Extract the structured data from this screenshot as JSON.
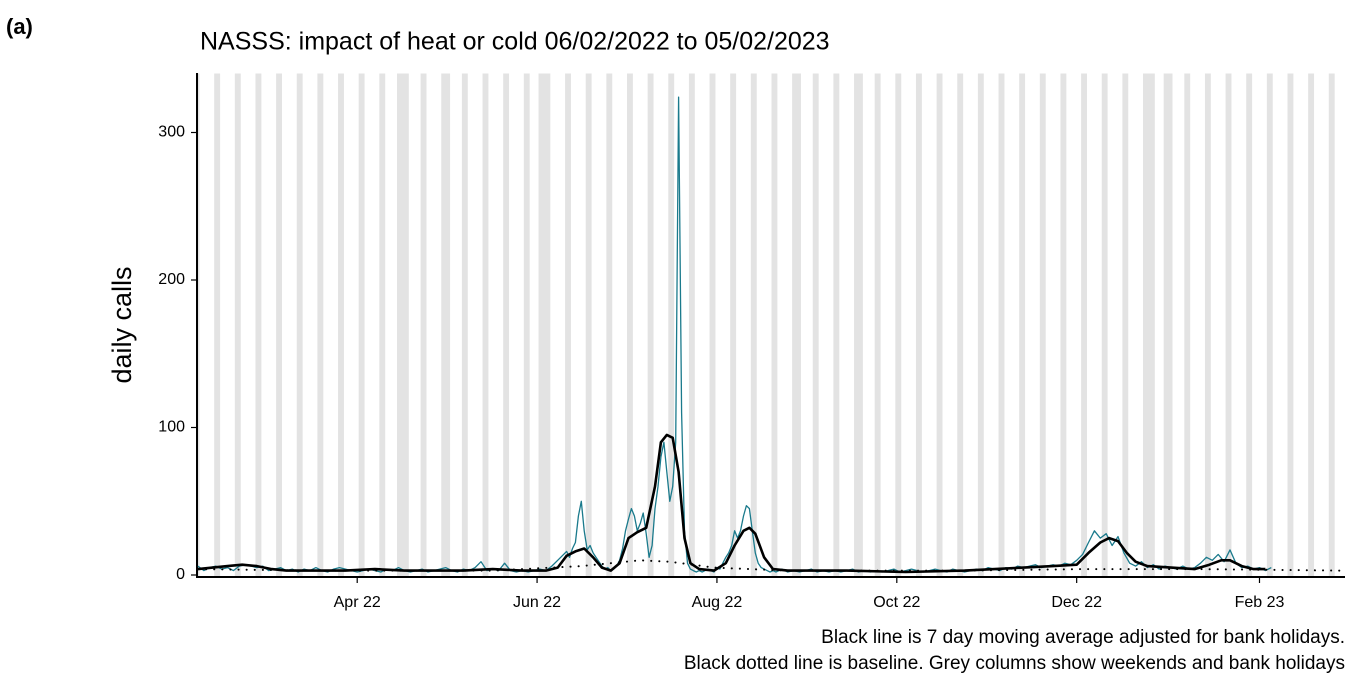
{
  "panel_label": "(a)",
  "chart_data": {
    "type": "line",
    "title": "NASSS: impact of heat or cold 06/02/2022 to 05/02/2023",
    "y_label": "daily calls",
    "notes": [
      "Black line is 7 day moving average adjusted for bank holidays.",
      "Black dotted line is baseline. Grey columns show weekends and bank holidays"
    ],
    "xlim": [
      -0.5,
      389
    ],
    "ylim": [
      0,
      340
    ],
    "yticks": [
      0,
      100,
      200,
      300
    ],
    "xticks": [
      {
        "value": 54,
        "label": "Apr 22"
      },
      {
        "value": 115,
        "label": "Jun 22"
      },
      {
        "value": 176,
        "label": "Aug 22"
      },
      {
        "value": 237,
        "label": "Oct 22"
      },
      {
        "value": 298,
        "label": "Dec 22"
      },
      {
        "value": 360,
        "label": "Feb 23"
      }
    ],
    "shade_color": "#e3e3e3",
    "shaded_days": [
      [
        0,
        0
      ],
      [
        6,
        7
      ],
      [
        13,
        14
      ],
      [
        20,
        21
      ],
      [
        27,
        28
      ],
      [
        34,
        35
      ],
      [
        41,
        42
      ],
      [
        48,
        49
      ],
      [
        55,
        56
      ],
      [
        62,
        63
      ],
      [
        68,
        71
      ],
      [
        76,
        77
      ],
      [
        83,
        85
      ],
      [
        90,
        91
      ],
      [
        97,
        98
      ],
      [
        104,
        105
      ],
      [
        111,
        112
      ],
      [
        116,
        119
      ],
      [
        125,
        126
      ],
      [
        132,
        133
      ],
      [
        139,
        140
      ],
      [
        146,
        147
      ],
      [
        153,
        154
      ],
      [
        160,
        161
      ],
      [
        167,
        168
      ],
      [
        174,
        175
      ],
      [
        181,
        182
      ],
      [
        188,
        189
      ],
      [
        195,
        196
      ],
      [
        202,
        204
      ],
      [
        209,
        210
      ],
      [
        216,
        217
      ],
      [
        223,
        225
      ],
      [
        230,
        231
      ],
      [
        237,
        238
      ],
      [
        244,
        245
      ],
      [
        251,
        252
      ],
      [
        258,
        259
      ],
      [
        265,
        266
      ],
      [
        272,
        273
      ],
      [
        279,
        280
      ],
      [
        286,
        287
      ],
      [
        293,
        294
      ],
      [
        300,
        301
      ],
      [
        307,
        308
      ],
      [
        314,
        315
      ],
      [
        321,
        324
      ],
      [
        328,
        330
      ],
      [
        335,
        336
      ],
      [
        342,
        343
      ],
      [
        349,
        350
      ],
      [
        356,
        357
      ],
      [
        363,
        364
      ],
      [
        370,
        371
      ],
      [
        377,
        378
      ],
      [
        384,
        385
      ]
    ],
    "series": [
      {
        "color": "#1a7a8c",
        "style": "solid",
        "width": 1.3,
        "x": [
          0,
          2,
          4,
          6,
          8,
          10,
          12,
          14,
          16,
          18,
          20,
          22,
          24,
          26,
          28,
          30,
          32,
          34,
          36,
          38,
          40,
          42,
          44,
          46,
          48,
          50,
          52,
          54,
          56,
          58,
          60,
          62,
          64,
          66,
          68,
          70,
          72,
          74,
          76,
          78,
          80,
          82,
          84,
          86,
          88,
          90,
          92,
          94,
          96,
          98,
          100,
          102,
          104,
          106,
          108,
          110,
          112,
          114,
          116,
          118,
          120,
          122,
          124,
          125,
          126,
          127,
          128,
          129,
          130,
          131,
          132,
          133,
          134,
          135,
          136,
          137,
          138,
          139,
          140,
          141,
          142,
          143,
          144,
          145,
          146,
          147,
          148,
          149,
          150,
          151,
          152,
          153,
          154,
          155,
          156,
          157,
          158,
          159,
          160,
          161,
          162,
          163,
          164,
          165,
          166,
          167,
          168,
          169,
          170,
          171,
          172,
          173,
          174,
          175,
          176,
          177,
          178,
          179,
          180,
          181,
          182,
          183,
          184,
          185,
          186,
          187,
          188,
          189,
          190,
          191,
          192,
          193,
          194,
          195,
          196,
          197,
          198,
          199,
          200,
          202,
          204,
          206,
          208,
          210,
          212,
          214,
          216,
          218,
          220,
          222,
          224,
          226,
          228,
          230,
          232,
          234,
          236,
          238,
          240,
          242,
          244,
          246,
          248,
          250,
          252,
          254,
          256,
          258,
          260,
          262,
          264,
          266,
          268,
          270,
          272,
          274,
          276,
          278,
          280,
          282,
          284,
          286,
          288,
          290,
          292,
          294,
          296,
          298,
          300,
          302,
          304,
          306,
          308,
          310,
          312,
          314,
          316,
          318,
          320,
          322,
          324,
          326,
          328,
          330,
          332,
          334,
          336,
          338,
          340,
          342,
          344,
          346,
          348,
          350,
          352,
          354,
          356,
          358,
          360,
          362,
          364
        ],
        "values": [
          6,
          3,
          5,
          6,
          4,
          5,
          3,
          6,
          7,
          6,
          5,
          6,
          3,
          4,
          5,
          3,
          4,
          2,
          4,
          3,
          5,
          3,
          2,
          4,
          5,
          4,
          3,
          2,
          3,
          4,
          3,
          2,
          4,
          3,
          5,
          3,
          2,
          3,
          4,
          2,
          3,
          4,
          5,
          3,
          2,
          4,
          3,
          5,
          9,
          3,
          4,
          3,
          8,
          3,
          2,
          3,
          2,
          3,
          4,
          3,
          6,
          10,
          14,
          16,
          12,
          18,
          22,
          40,
          50,
          30,
          17,
          20,
          15,
          12,
          9,
          6,
          4,
          5,
          3,
          4,
          6,
          10,
          18,
          30,
          38,
          45,
          40,
          30,
          35,
          42,
          28,
          12,
          20,
          45,
          60,
          80,
          90,
          70,
          50,
          60,
          90,
          324,
          110,
          30,
          8,
          4,
          3,
          2,
          3,
          2,
          3,
          4,
          3,
          2,
          5,
          4,
          8,
          12,
          15,
          20,
          30,
          25,
          30,
          40,
          47,
          45,
          30,
          15,
          8,
          5,
          4,
          3,
          2,
          3,
          2,
          3,
          4,
          3,
          2,
          3,
          2,
          3,
          4,
          2,
          3,
          2,
          3,
          2,
          3,
          4,
          2,
          3,
          2,
          3,
          2,
          3,
          4,
          2,
          3,
          4,
          3,
          2,
          3,
          4,
          3,
          2,
          4,
          3,
          2,
          3,
          4,
          3,
          5,
          4,
          3,
          5,
          4,
          6,
          5,
          6,
          7,
          5,
          6,
          7,
          6,
          8,
          7,
          10,
          14,
          22,
          30,
          25,
          28,
          20,
          26,
          15,
          8,
          6,
          9,
          5,
          7,
          4,
          6,
          5,
          4,
          6,
          4,
          5,
          8,
          12,
          10,
          14,
          9,
          17,
          8,
          5,
          6,
          4,
          5,
          3,
          5
        ]
      },
      {
        "color": "#000000",
        "style": "solid",
        "width": 2.6,
        "x": [
          0,
          5,
          10,
          15,
          20,
          25,
          30,
          40,
          50,
          60,
          70,
          80,
          90,
          100,
          110,
          118,
          122,
          125,
          128,
          131,
          134,
          137,
          140,
          143,
          146,
          149,
          152,
          155,
          157,
          159,
          161,
          163,
          165,
          167,
          170,
          175,
          179,
          182,
          185,
          187,
          189,
          192,
          195,
          200,
          220,
          240,
          260,
          280,
          290,
          298,
          302,
          306,
          309,
          312,
          315,
          318,
          322,
          330,
          338,
          343,
          347,
          350,
          354,
          358,
          362
        ],
        "values": [
          4,
          5,
          6,
          7,
          6,
          4,
          3,
          3,
          3,
          4,
          3,
          3,
          3,
          4,
          3,
          3,
          5,
          13,
          16,
          18,
          12,
          5,
          3,
          8,
          25,
          29,
          32,
          60,
          90,
          95,
          93,
          70,
          25,
          8,
          4,
          3,
          8,
          20,
          30,
          32,
          28,
          12,
          4,
          3,
          3,
          2,
          3,
          5,
          6,
          7,
          15,
          22,
          25,
          23,
          15,
          9,
          6,
          5,
          4,
          7,
          10,
          10,
          6,
          4,
          4
        ]
      },
      {
        "color": "#000000",
        "style": "dotted",
        "width": 2,
        "x": [
          0,
          40,
          100,
          130,
          150,
          160,
          175,
          200,
          260,
          300,
          340,
          388
        ],
        "values": [
          4,
          3,
          3,
          6,
          10,
          9,
          5,
          3,
          3,
          4,
          4,
          3
        ]
      }
    ]
  }
}
